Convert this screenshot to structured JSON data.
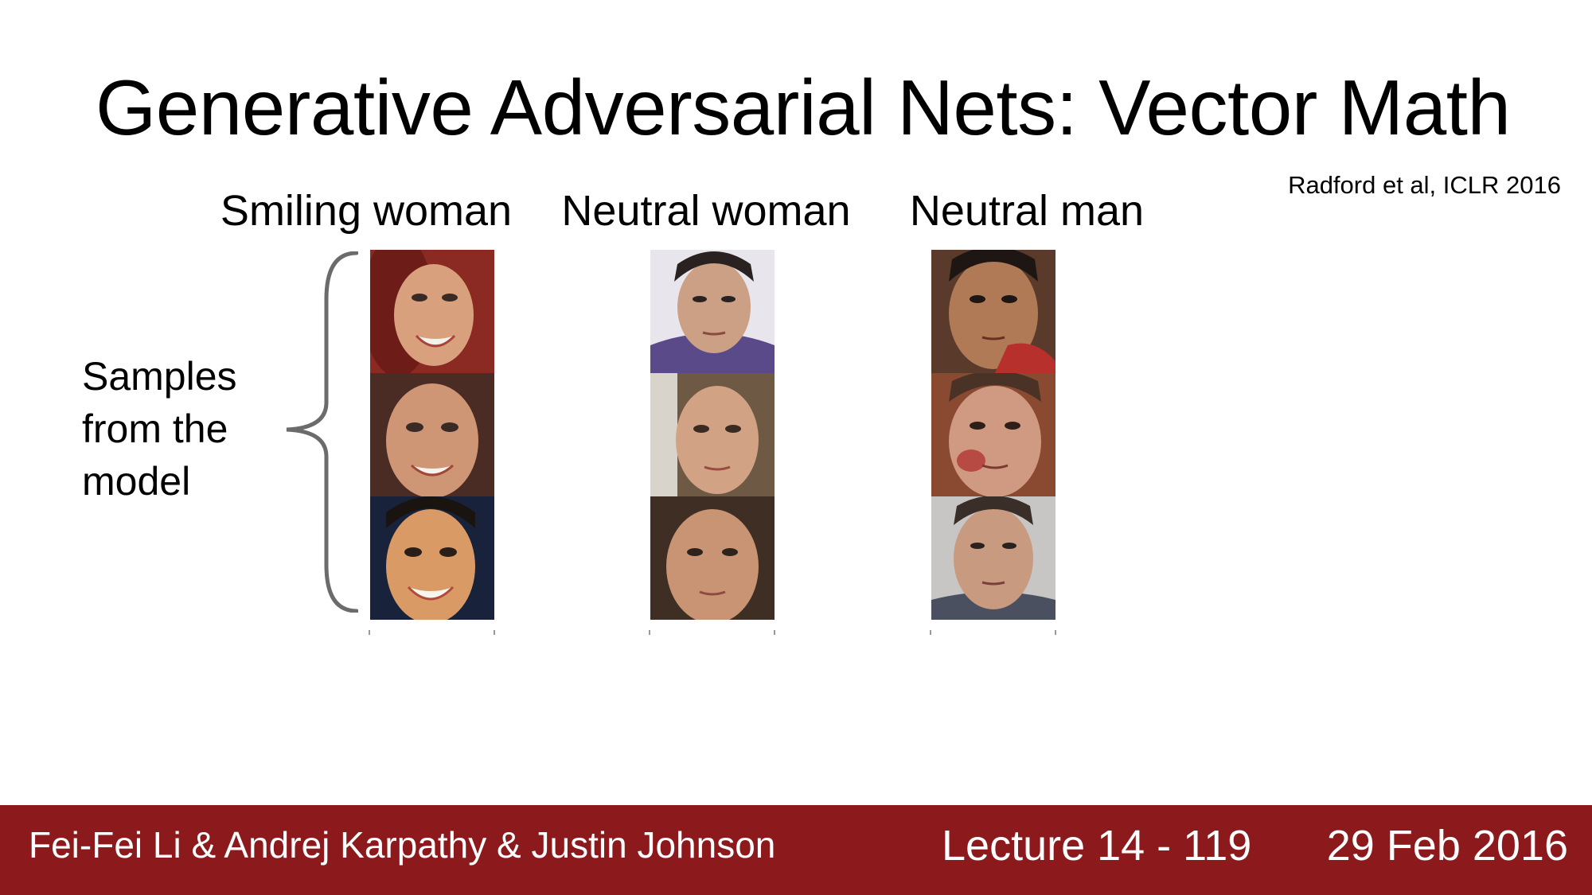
{
  "slide": {
    "title": "Generative Adversarial Nets: Vector Math",
    "citation": "Radford et al, ICLR 2016",
    "side_label_lines": [
      "Samples",
      "from the",
      "model"
    ],
    "columns": [
      {
        "label": "Smiling woman"
      },
      {
        "label": "Neutral woman"
      },
      {
        "label": "Neutral man"
      }
    ]
  },
  "footer": {
    "authors": "Fei-Fei Li & Andrej Karpathy & Justin Johnson",
    "lecture": "Lecture 14 - 119",
    "date": "29 Feb 2016"
  },
  "colors": {
    "footer_bg": "#8c1a1c",
    "brace": "#6b6b6b"
  }
}
